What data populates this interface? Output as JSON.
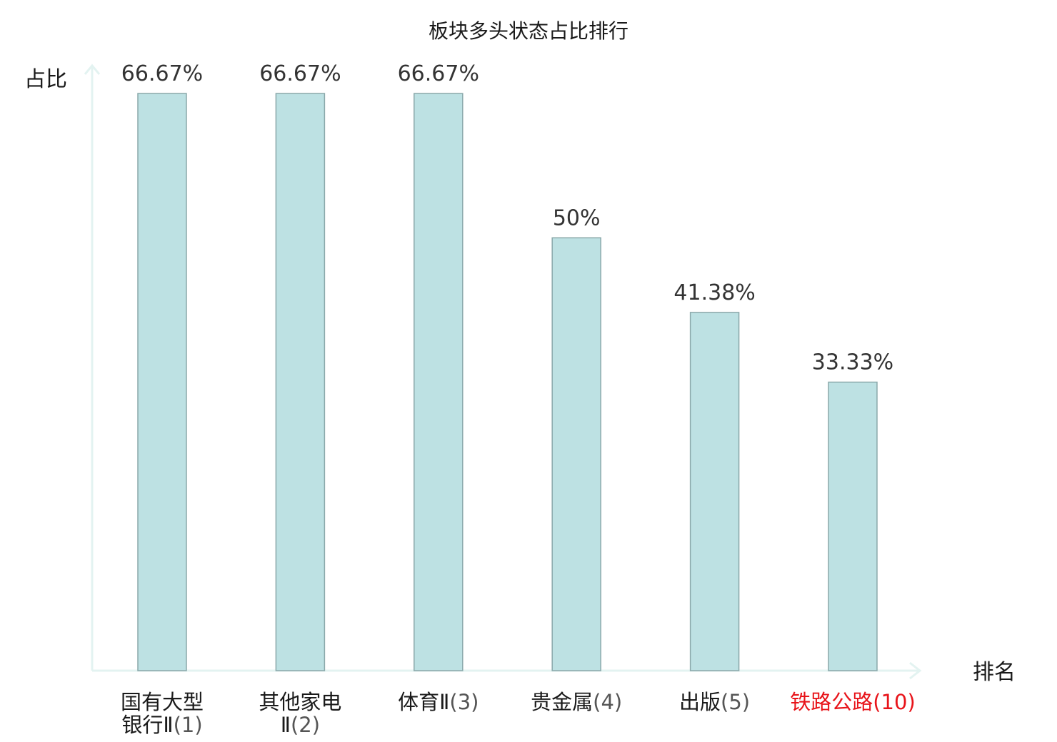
{
  "chart_data": {
    "type": "bar",
    "title": "板块多头状态占比排行",
    "ylabel": "占比",
    "xlabel": "排名",
    "ylim": [
      0,
      70
    ],
    "categories": [
      {
        "lines": [
          {
            "name": "国有大型"
          },
          {
            "name": "银行Ⅱ",
            "rank": "(1)"
          }
        ],
        "highlight": false
      },
      {
        "lines": [
          {
            "name": "其他家电"
          },
          {
            "name": "Ⅱ",
            "rank": "(2)"
          }
        ],
        "highlight": false
      },
      {
        "lines": [
          {
            "name": "体育Ⅱ",
            "rank": "(3)"
          }
        ],
        "highlight": false
      },
      {
        "lines": [
          {
            "name": "贵金属",
            "rank": "(4)"
          }
        ],
        "highlight": false
      },
      {
        "lines": [
          {
            "name": "出版",
            "rank": "(5)"
          }
        ],
        "highlight": false
      },
      {
        "lines": [
          {
            "name": "铁路公路",
            "rank": "(10)"
          }
        ],
        "highlight": true
      }
    ],
    "values": [
      66.67,
      66.67,
      66.67,
      50,
      41.38,
      33.33
    ],
    "value_labels": [
      "66.67%",
      "66.67%",
      "66.67%",
      "50%",
      "41.38%",
      "33.33%"
    ],
    "colors": {
      "bar": "#bde1e3",
      "bar_border": "#8aa8aa",
      "axis": "#e3f3f1",
      "highlight": "#e8141a"
    },
    "grid": false,
    "legend": "none"
  }
}
